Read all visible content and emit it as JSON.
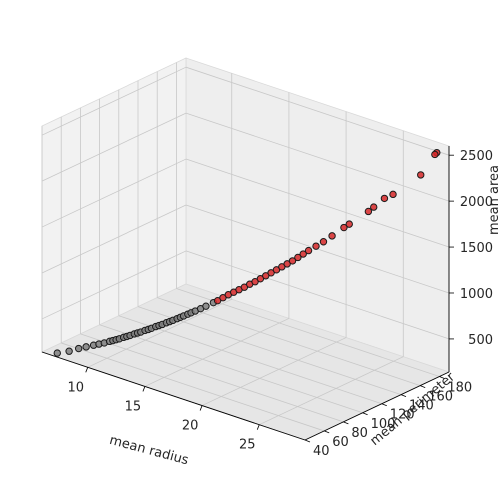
{
  "chart_data": {
    "type": "scatter",
    "projection": "3d",
    "title": "",
    "xlabel": "mean radius",
    "ylabel": "mean perimeter",
    "zlabel": "mean area",
    "xlim": [
      6.0,
      29.0
    ],
    "ylim": [
      40,
      190
    ],
    "zlim": [
      140,
      2600
    ],
    "xticks": [
      "10",
      "15",
      "20",
      "25"
    ],
    "yticks": [
      "40",
      "60",
      "80",
      "100",
      "120",
      "140",
      "160",
      "180"
    ],
    "zticks": [
      "500",
      "1000",
      "1500",
      "2000",
      "2500"
    ],
    "grid": true,
    "legend": "none",
    "series": [
      {
        "color": "#7f7f7f",
        "points": [
          [
            7.0,
            44,
            150
          ],
          [
            7.7,
            48,
            180
          ],
          [
            8.2,
            52,
            210
          ],
          [
            8.6,
            55,
            230
          ],
          [
            9.0,
            58,
            250
          ],
          [
            9.3,
            60,
            265
          ],
          [
            9.6,
            62,
            280
          ],
          [
            9.9,
            64,
            300
          ],
          [
            10.1,
            65,
            312
          ],
          [
            10.3,
            66,
            325
          ],
          [
            10.5,
            67,
            338
          ],
          [
            10.7,
            69,
            352
          ],
          [
            10.9,
            70,
            365
          ],
          [
            11.1,
            71,
            380
          ],
          [
            11.3,
            73,
            395
          ],
          [
            11.5,
            74,
            408
          ],
          [
            11.7,
            75,
            422
          ],
          [
            11.9,
            77,
            438
          ],
          [
            12.1,
            78,
            452
          ],
          [
            12.3,
            79,
            468
          ],
          [
            12.5,
            81,
            485
          ],
          [
            12.7,
            82,
            500
          ],
          [
            12.9,
            83,
            515
          ],
          [
            13.1,
            85,
            532
          ],
          [
            13.3,
            86,
            548
          ],
          [
            13.5,
            87,
            565
          ],
          [
            13.7,
            89,
            582
          ],
          [
            13.9,
            90,
            600
          ],
          [
            14.1,
            91,
            618
          ],
          [
            14.3,
            93,
            636
          ],
          [
            14.5,
            94,
            654
          ],
          [
            14.7,
            96,
            672
          ],
          [
            15.0,
            98,
            700
          ],
          [
            15.3,
            100,
            730
          ],
          [
            15.7,
            103,
            770
          ]
        ]
      },
      {
        "color": "#d62728",
        "points": [
          [
            15.9,
            105,
            790
          ],
          [
            16.2,
            107,
            825
          ],
          [
            16.5,
            109,
            860
          ],
          [
            16.8,
            111,
            890
          ],
          [
            17.1,
            113,
            920
          ],
          [
            17.4,
            115,
            950
          ],
          [
            17.7,
            117,
            985
          ],
          [
            18.0,
            119,
            1015
          ],
          [
            18.3,
            121,
            1050
          ],
          [
            18.6,
            123,
            1085
          ],
          [
            18.9,
            125,
            1120
          ],
          [
            19.2,
            127,
            1155
          ],
          [
            19.5,
            129,
            1190
          ],
          [
            19.8,
            131,
            1225
          ],
          [
            20.1,
            133,
            1260
          ],
          [
            20.4,
            135,
            1300
          ],
          [
            20.7,
            137,
            1340
          ],
          [
            21.0,
            139,
            1380
          ],
          [
            21.4,
            142,
            1430
          ],
          [
            21.8,
            145,
            1480
          ],
          [
            22.3,
            148,
            1550
          ],
          [
            23.0,
            152,
            1650
          ],
          [
            23.3,
            154,
            1690
          ],
          [
            24.3,
            162,
            1830
          ],
          [
            24.6,
            164,
            1880
          ],
          [
            25.2,
            168,
            1980
          ],
          [
            25.7,
            171,
            2030
          ],
          [
            27.2,
            182,
            2250
          ],
          [
            28.1,
            188,
            2500
          ],
          [
            28.1,
            186,
            2490
          ]
        ]
      }
    ]
  }
}
